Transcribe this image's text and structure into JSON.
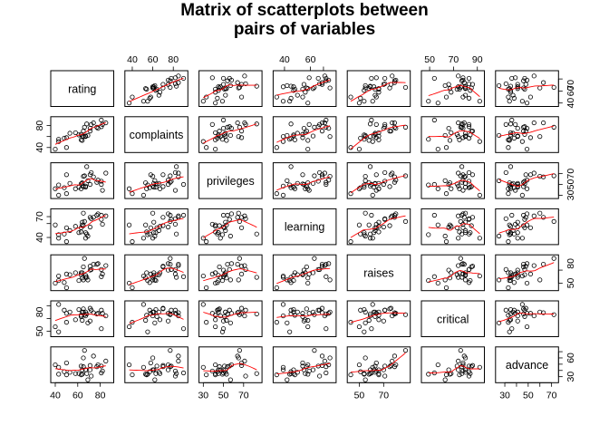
{
  "chart_data": {
    "type": "scatter",
    "title_lines": [
      "Matrix of scatterplots between",
      "pairs of variables"
    ],
    "variables": [
      "rating",
      "complaints",
      "privileges",
      "learning",
      "raises",
      "critical",
      "advance"
    ],
    "ranges": {
      "rating": [
        38,
        90
      ],
      "complaints": [
        35,
        92
      ],
      "privileges": [
        28,
        86
      ],
      "learning": [
        33,
        78
      ],
      "raises": [
        42,
        90
      ],
      "critical": [
        45,
        94
      ],
      "advance": [
        24,
        74
      ]
    },
    "ticks": {
      "rating": [
        40,
        60,
        80
      ],
      "complaints": [
        40,
        60,
        80
      ],
      "privileges": [
        30,
        50,
        70
      ],
      "learning": [
        40,
        60,
        70
      ],
      "raises": [
        50,
        70
      ],
      "critical": [
        50,
        70,
        90
      ],
      "advance": [
        30,
        40,
        50,
        60,
        70
      ]
    },
    "tick_labels": {
      "top": [
        {
          "column": "complaints",
          "values": [
            40,
            60,
            80
          ]
        },
        {
          "column": "learning",
          "values": [
            40,
            60
          ]
        },
        {
          "column": "critical",
          "values": [
            50,
            70,
            90
          ]
        }
      ],
      "bottom": [
        {
          "column": "rating",
          "values": [
            40,
            60,
            80
          ]
        },
        {
          "column": "privileges",
          "values": [
            30,
            50,
            70
          ]
        },
        {
          "column": "raises",
          "values": [
            50,
            70
          ]
        },
        {
          "column": "advance",
          "values": [
            30,
            50,
            70
          ]
        }
      ],
      "left": [
        {
          "row": "complaints",
          "values": [
            40,
            80
          ]
        },
        {
          "row": "learning",
          "values": [
            40,
            70
          ]
        },
        {
          "row": "critical",
          "values": [
            50,
            80
          ]
        }
      ],
      "right": [
        {
          "row": "rating",
          "values": [
            40,
            60,
            70
          ]
        },
        {
          "row": "privileges",
          "values": [
            30,
            50,
            70
          ]
        },
        {
          "row": "raises",
          "values": [
            50,
            80
          ]
        },
        {
          "row": "advance",
          "values": [
            30,
            60
          ]
        }
      ]
    },
    "smoother_color": "#ff0000",
    "point_color": "#000000",
    "observations": {
      "rating": [
        43,
        63,
        71,
        61,
        81,
        43,
        58,
        71,
        72,
        67,
        64,
        67,
        69,
        68,
        77,
        81,
        74,
        65,
        65,
        50,
        50,
        64,
        53,
        40,
        63,
        66,
        78,
        48,
        85,
        82
      ],
      "complaints": [
        51,
        64,
        70,
        63,
        78,
        55,
        67,
        75,
        82,
        61,
        53,
        60,
        62,
        83,
        77,
        90,
        85,
        60,
        70,
        58,
        40,
        61,
        66,
        37,
        54,
        77,
        75,
        57,
        85,
        82
      ],
      "privileges": [
        30,
        51,
        68,
        45,
        56,
        49,
        42,
        50,
        72,
        45,
        53,
        47,
        57,
        83,
        54,
        50,
        64,
        65,
        46,
        68,
        33,
        52,
        52,
        42,
        42,
        66,
        58,
        44,
        71,
        39
      ],
      "learning": [
        39,
        54,
        69,
        47,
        66,
        44,
        56,
        55,
        67,
        47,
        58,
        39,
        42,
        45,
        72,
        72,
        69,
        75,
        57,
        54,
        34,
        62,
        50,
        58,
        48,
        63,
        74,
        45,
        71,
        59
      ],
      "raises": [
        61,
        63,
        76,
        54,
        71,
        54,
        66,
        70,
        71,
        62,
        58,
        59,
        55,
        59,
        79,
        60,
        79,
        55,
        75,
        64,
        43,
        66,
        63,
        50,
        66,
        88,
        80,
        51,
        77,
        64
      ],
      "critical": [
        92,
        73,
        86,
        84,
        83,
        49,
        68,
        66,
        83,
        80,
        67,
        74,
        63,
        77,
        77,
        54,
        79,
        80,
        85,
        78,
        64,
        80,
        80,
        57,
        75,
        76,
        78,
        83,
        74,
        78
      ],
      "advance": [
        45,
        47,
        48,
        35,
        47,
        34,
        35,
        41,
        31,
        41,
        34,
        41,
        25,
        35,
        46,
        36,
        63,
        60,
        46,
        52,
        33,
        41,
        37,
        49,
        33,
        72,
        49,
        38,
        55,
        39
      ]
    }
  }
}
